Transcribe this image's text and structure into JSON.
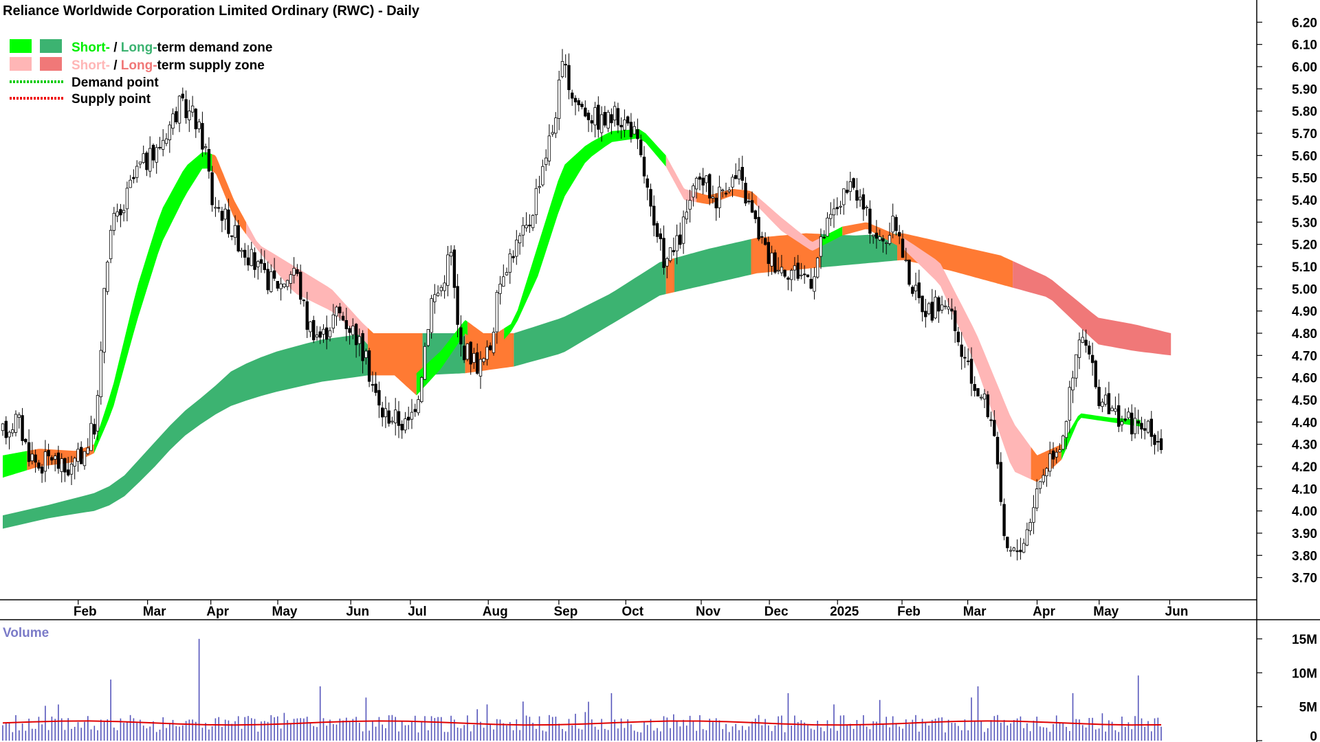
{
  "chart_data": {
    "type": "candlestick",
    "title": "Reliance Worldwide Corporation Limited Ordinary (RWC) - Daily",
    "price_axis": {
      "ticks": [
        "3.70",
        "3.80",
        "3.90",
        "4.00",
        "4.10",
        "4.20",
        "4.30",
        "4.40",
        "4.50",
        "4.60",
        "4.70",
        "4.80",
        "4.90",
        "5.00",
        "5.10",
        "5.20",
        "5.30",
        "5.40",
        "5.50",
        "5.60",
        "5.70",
        "5.80",
        "5.90",
        "6.00",
        "6.10",
        "6.20"
      ],
      "ylim": [
        3.6,
        6.3
      ]
    },
    "x_axis": {
      "labels": [
        {
          "label": "Feb",
          "t": 0.062
        },
        {
          "label": "Mar",
          "t": 0.119
        },
        {
          "label": "Apr",
          "t": 0.171
        },
        {
          "label": "May",
          "t": 0.226
        },
        {
          "label": "Jun",
          "t": 0.286
        },
        {
          "label": "Jul",
          "t": 0.335
        },
        {
          "label": "Aug",
          "t": 0.399
        },
        {
          "label": "Sep",
          "t": 0.457
        },
        {
          "label": "Oct",
          "t": 0.512
        },
        {
          "label": "Nov",
          "t": 0.574
        },
        {
          "label": "Dec",
          "t": 0.63
        },
        {
          "label": "2025",
          "t": 0.686
        },
        {
          "label": "Feb",
          "t": 0.739
        },
        {
          "label": "Mar",
          "t": 0.793
        },
        {
          "label": "Apr",
          "t": 0.85
        },
        {
          "label": "May",
          "t": 0.901
        },
        {
          "label": "Jun",
          "t": 0.959
        }
      ]
    },
    "legend": [
      {
        "prefix": "Short-",
        "mid": " / ",
        "prefix2": "Long-",
        "suffix": "term demand zone",
        "colors": [
          "#00ff00",
          "#3cb371"
        ]
      },
      {
        "prefix": "Short-",
        "mid": " / ",
        "prefix2": "Long-",
        "suffix": "term supply zone",
        "colors": [
          "#ffb6b6",
          "#f07878"
        ]
      },
      {
        "label": "Demand point",
        "color": "#00cc00"
      },
      {
        "label": "Supply point",
        "color": "#ee0000"
      }
    ],
    "long_term_band": [
      [
        0.0,
        3.92,
        3.98
      ],
      [
        0.04,
        3.97,
        4.03
      ],
      [
        0.075,
        4.0,
        4.08
      ],
      [
        0.095,
        4.04,
        4.13
      ],
      [
        0.12,
        4.17,
        4.28
      ],
      [
        0.145,
        4.32,
        4.43
      ],
      [
        0.17,
        4.42,
        4.54
      ],
      [
        0.19,
        4.48,
        4.64
      ],
      [
        0.22,
        4.53,
        4.71
      ],
      [
        0.26,
        4.58,
        4.77
      ],
      [
        0.3,
        4.61,
        4.8
      ],
      [
        0.34,
        4.61,
        4.8
      ],
      [
        0.38,
        4.62,
        4.8
      ],
      [
        0.42,
        4.65,
        4.8
      ],
      [
        0.46,
        4.71,
        4.87
      ],
      [
        0.5,
        4.84,
        4.98
      ],
      [
        0.54,
        4.97,
        5.12
      ],
      [
        0.58,
        5.02,
        5.18
      ],
      [
        0.62,
        5.07,
        5.23
      ],
      [
        0.66,
        5.09,
        5.25
      ],
      [
        0.7,
        5.11,
        5.24
      ],
      [
        0.74,
        5.13,
        5.25
      ],
      [
        0.78,
        5.08,
        5.2
      ],
      [
        0.82,
        5.02,
        5.15
      ],
      [
        0.86,
        4.96,
        5.05
      ],
      [
        0.9,
        4.75,
        4.87
      ],
      [
        0.93,
        4.72,
        4.84
      ],
      [
        0.96,
        4.7,
        4.8
      ]
    ],
    "long_term_colors": [
      [
        0.0,
        0.3,
        "#3cb371"
      ],
      [
        0.3,
        0.345,
        "#ff7a33"
      ],
      [
        0.345,
        0.38,
        "#3cb371"
      ],
      [
        0.38,
        0.42,
        "#ff7a33"
      ],
      [
        0.42,
        0.545,
        "#3cb371"
      ],
      [
        0.545,
        0.552,
        "#ff7a33"
      ],
      [
        0.552,
        0.615,
        "#3cb371"
      ],
      [
        0.615,
        0.672,
        "#ff7a33"
      ],
      [
        0.672,
        0.735,
        "#3cb371"
      ],
      [
        0.735,
        0.8,
        "#ff7a33"
      ],
      [
        0.8,
        0.83,
        "#ff7a33"
      ],
      [
        0.83,
        0.96,
        "#f07878"
      ]
    ],
    "short_term_band": [
      [
        0.0,
        4.15,
        4.25
      ],
      [
        0.03,
        4.2,
        4.28
      ],
      [
        0.06,
        4.22,
        4.27
      ],
      [
        0.075,
        4.26,
        4.3
      ],
      [
        0.09,
        4.45,
        4.55
      ],
      [
        0.11,
        4.85,
        5.0
      ],
      [
        0.13,
        5.2,
        5.35
      ],
      [
        0.15,
        5.42,
        5.55
      ],
      [
        0.165,
        5.55,
        5.62
      ],
      [
        0.175,
        5.52,
        5.6
      ],
      [
        0.19,
        5.32,
        5.4
      ],
      [
        0.21,
        5.17,
        5.2
      ],
      [
        0.24,
        4.98,
        5.1
      ],
      [
        0.27,
        4.9,
        5.0
      ],
      [
        0.295,
        4.78,
        4.85
      ],
      [
        0.32,
        4.62,
        4.72
      ],
      [
        0.34,
        4.52,
        4.62
      ],
      [
        0.36,
        4.64,
        4.72
      ],
      [
        0.38,
        4.8,
        4.86
      ],
      [
        0.4,
        4.7,
        4.78
      ],
      [
        0.42,
        4.82,
        4.85
      ],
      [
        0.44,
        5.06,
        5.2
      ],
      [
        0.46,
        5.4,
        5.55
      ],
      [
        0.48,
        5.58,
        5.65
      ],
      [
        0.5,
        5.66,
        5.71
      ],
      [
        0.525,
        5.68,
        5.72
      ],
      [
        0.545,
        5.55,
        5.6
      ],
      [
        0.56,
        5.4,
        5.45
      ],
      [
        0.58,
        5.38,
        5.42
      ],
      [
        0.6,
        5.42,
        5.45
      ],
      [
        0.615,
        5.4,
        5.44
      ],
      [
        0.64,
        5.26,
        5.32
      ],
      [
        0.665,
        5.17,
        5.21
      ],
      [
        0.69,
        5.24,
        5.28
      ],
      [
        0.71,
        5.27,
        5.3
      ],
      [
        0.74,
        5.18,
        5.23
      ],
      [
        0.77,
        5.02,
        5.12
      ],
      [
        0.8,
        4.65,
        4.8
      ],
      [
        0.83,
        4.18,
        4.4
      ],
      [
        0.85,
        4.13,
        4.25
      ],
      [
        0.87,
        4.23,
        4.3
      ],
      [
        0.885,
        4.42,
        4.44
      ],
      [
        0.91,
        4.4,
        4.42
      ],
      [
        0.935,
        4.38,
        4.41
      ]
    ],
    "short_term_colors": [
      [
        0.0,
        0.02,
        "#00ff00"
      ],
      [
        0.02,
        0.075,
        "#ff7a33"
      ],
      [
        0.075,
        0.172,
        "#00ff00"
      ],
      [
        0.172,
        0.2,
        "#ff7a33"
      ],
      [
        0.2,
        0.3,
        "#ffb6b6"
      ],
      [
        0.3,
        0.34,
        "#ff7a33"
      ],
      [
        0.34,
        0.382,
        "#00ff00"
      ],
      [
        0.382,
        0.412,
        "#ff7a33"
      ],
      [
        0.412,
        0.545,
        "#00ff00"
      ],
      [
        0.545,
        0.57,
        "#ffb6b6"
      ],
      [
        0.57,
        0.62,
        "#ff7a33"
      ],
      [
        0.62,
        0.672,
        "#ffb6b6"
      ],
      [
        0.672,
        0.69,
        "#00ff00"
      ],
      [
        0.69,
        0.74,
        "#ff7a33"
      ],
      [
        0.74,
        0.845,
        "#ffb6b6"
      ],
      [
        0.845,
        0.87,
        "#ff7a33"
      ],
      [
        0.87,
        0.935,
        "#00ff00"
      ]
    ],
    "price_path": [
      [
        0.0,
        4.35
      ],
      [
        0.012,
        4.42
      ],
      [
        0.02,
        4.28
      ],
      [
        0.03,
        4.2
      ],
      [
        0.04,
        4.25
      ],
      [
        0.05,
        4.18
      ],
      [
        0.058,
        4.2
      ],
      [
        0.068,
        4.28
      ],
      [
        0.076,
        4.4
      ],
      [
        0.08,
        4.6
      ],
      [
        0.084,
        5.1
      ],
      [
        0.09,
        5.3
      ],
      [
        0.097,
        5.32
      ],
      [
        0.104,
        5.45
      ],
      [
        0.112,
        5.55
      ],
      [
        0.125,
        5.6
      ],
      [
        0.135,
        5.72
      ],
      [
        0.145,
        5.82
      ],
      [
        0.157,
        5.78
      ],
      [
        0.167,
        5.62
      ],
      [
        0.172,
        5.4
      ],
      [
        0.18,
        5.35
      ],
      [
        0.19,
        5.25
      ],
      [
        0.202,
        5.15
      ],
      [
        0.215,
        5.05
      ],
      [
        0.228,
        5.02
      ],
      [
        0.24,
        5.1
      ],
      [
        0.25,
        4.85
      ],
      [
        0.262,
        4.78
      ],
      [
        0.275,
        4.9
      ],
      [
        0.29,
        4.8
      ],
      [
        0.3,
        4.65
      ],
      [
        0.31,
        4.45
      ],
      [
        0.322,
        4.42
      ],
      [
        0.333,
        4.38
      ],
      [
        0.342,
        4.55
      ],
      [
        0.352,
        4.95
      ],
      [
        0.36,
        5.0
      ],
      [
        0.368,
        5.18
      ],
      [
        0.375,
        4.75
      ],
      [
        0.385,
        4.7
      ],
      [
        0.392,
        4.65
      ],
      [
        0.4,
        4.72
      ],
      [
        0.41,
        5.08
      ],
      [
        0.42,
        5.18
      ],
      [
        0.432,
        5.28
      ],
      [
        0.443,
        5.55
      ],
      [
        0.452,
        5.72
      ],
      [
        0.46,
        6.0
      ],
      [
        0.47,
        5.85
      ],
      [
        0.48,
        5.8
      ],
      [
        0.492,
        5.75
      ],
      [
        0.505,
        5.78
      ],
      [
        0.518,
        5.72
      ],
      [
        0.528,
        5.5
      ],
      [
        0.535,
        5.25
      ],
      [
        0.545,
        5.12
      ],
      [
        0.555,
        5.2
      ],
      [
        0.565,
        5.4
      ],
      [
        0.575,
        5.5
      ],
      [
        0.585,
        5.4
      ],
      [
        0.595,
        5.48
      ],
      [
        0.605,
        5.5
      ],
      [
        0.618,
        5.3
      ],
      [
        0.628,
        5.15
      ],
      [
        0.64,
        5.1
      ],
      [
        0.652,
        5.08
      ],
      [
        0.665,
        5.05
      ],
      [
        0.675,
        5.25
      ],
      [
        0.688,
        5.4
      ],
      [
        0.7,
        5.45
      ],
      [
        0.712,
        5.3
      ],
      [
        0.722,
        5.2
      ],
      [
        0.734,
        5.3
      ],
      [
        0.742,
        5.1
      ],
      [
        0.752,
        4.95
      ],
      [
        0.762,
        4.9
      ],
      [
        0.775,
        4.95
      ],
      [
        0.785,
        4.75
      ],
      [
        0.795,
        4.6
      ],
      [
        0.808,
        4.48
      ],
      [
        0.816,
        4.35
      ],
      [
        0.822,
        3.85
      ],
      [
        0.83,
        3.8
      ],
      [
        0.84,
        3.88
      ],
      [
        0.85,
        4.1
      ],
      [
        0.86,
        4.25
      ],
      [
        0.87,
        4.32
      ],
      [
        0.878,
        4.55
      ],
      [
        0.886,
        4.8
      ],
      [
        0.892,
        4.7
      ],
      [
        0.9,
        4.52
      ],
      [
        0.91,
        4.45
      ],
      [
        0.92,
        4.42
      ],
      [
        0.932,
        4.38
      ],
      [
        0.945,
        4.35
      ],
      [
        0.952,
        4.3
      ]
    ],
    "volume_axis": {
      "ticks": [
        "0",
        "5M",
        "10M",
        "15M"
      ],
      "ylim": [
        0,
        16
      ]
    },
    "volume_title": "Volume",
    "volume_ma": 2.6
  }
}
